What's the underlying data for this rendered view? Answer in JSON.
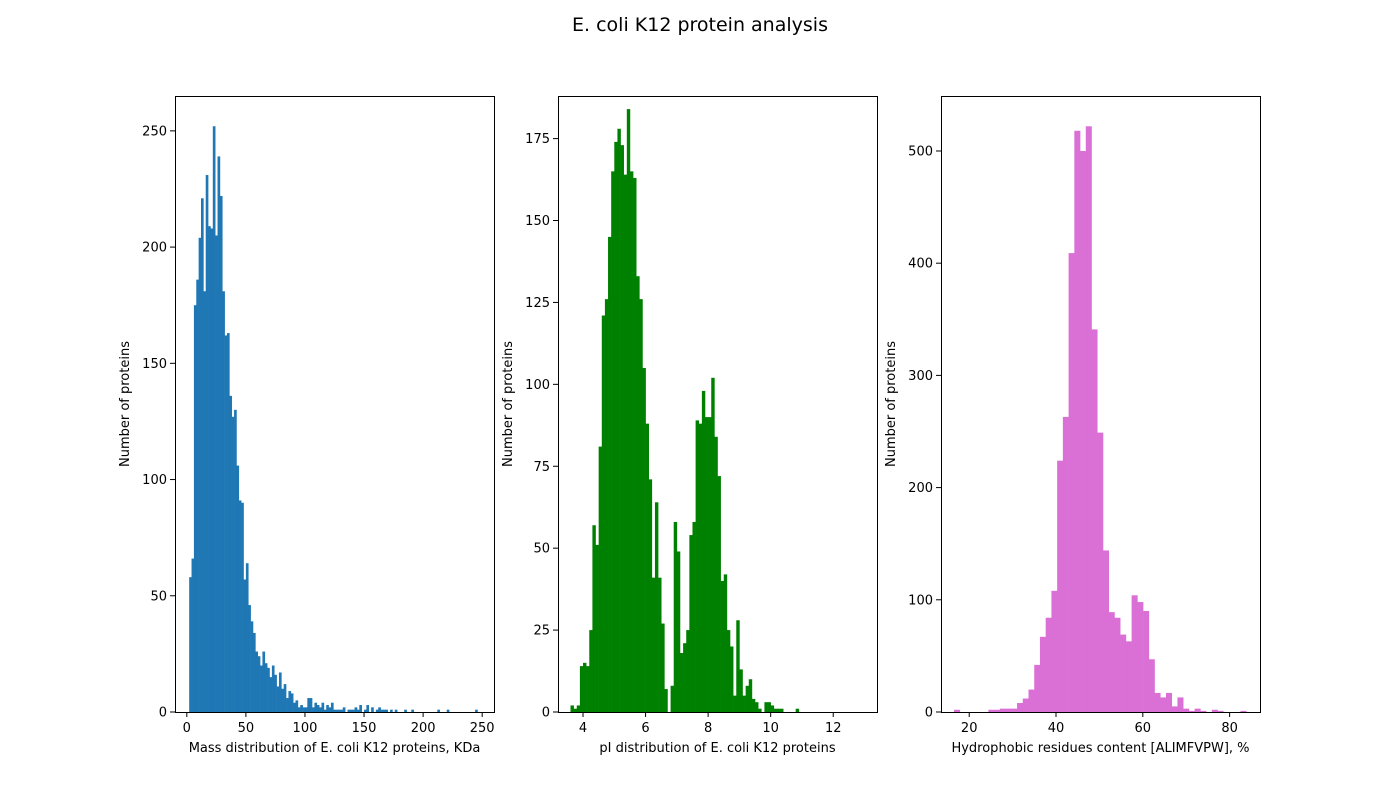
{
  "figure": {
    "title": "E. coli K12 protein analysis"
  },
  "chart_data": [
    {
      "type": "bar",
      "subtype": "histogram",
      "color": "#1f77b4",
      "xlabel": "Mass distribution of E. coli K12 proteins, KDa",
      "ylabel": "Number of proteins",
      "xlim": [
        -10,
        260
      ],
      "ylim": [
        0,
        265
      ],
      "xticks": [
        0,
        50,
        100,
        150,
        200,
        250
      ],
      "yticks": [
        0,
        50,
        100,
        150,
        200,
        250
      ],
      "bin_start": 2,
      "bin_width": 2,
      "values": [
        58,
        66,
        175,
        186,
        204,
        221,
        181,
        231,
        209,
        208,
        252,
        205,
        239,
        222,
        181,
        162,
        163,
        136,
        127,
        130,
        106,
        91,
        90,
        57,
        64,
        46,
        39,
        34,
        26,
        24,
        20,
        26,
        21,
        19,
        15,
        20,
        16,
        11,
        17,
        10,
        12,
        6,
        9,
        8,
        4,
        5,
        2,
        3,
        2,
        2,
        6,
        6,
        2,
        4,
        3,
        2,
        4,
        1,
        3,
        2,
        4,
        1,
        1,
        1,
        1,
        2,
        0,
        1,
        1,
        1,
        2,
        1,
        3,
        0,
        1,
        3,
        0,
        2,
        0,
        1,
        2,
        1,
        1,
        1,
        0,
        1,
        0,
        1,
        0,
        0,
        0,
        1,
        0,
        0,
        1,
        0,
        0,
        0,
        0,
        0,
        0,
        0,
        0,
        0,
        0,
        1,
        0,
        0,
        0,
        1,
        0,
        0,
        0,
        0,
        0,
        0,
        0,
        0,
        0,
        0,
        0,
        1
      ]
    },
    {
      "type": "bar",
      "subtype": "histogram",
      "color": "#008000",
      "xlabel": "pI distribution of E. coli K12 proteins",
      "ylabel": "Number of proteins",
      "xlim": [
        3.2,
        13.4
      ],
      "ylim": [
        0,
        188
      ],
      "xticks": [
        4,
        6,
        8,
        10,
        12
      ],
      "yticks": [
        0,
        25,
        50,
        75,
        100,
        125,
        150,
        175
      ],
      "bin_start": 3.6,
      "bin_width": 0.1,
      "values": [
        2,
        1,
        2,
        14,
        15,
        14,
        25,
        57,
        51,
        81,
        121,
        126,
        145,
        165,
        174,
        178,
        173,
        164,
        184,
        165,
        163,
        133,
        126,
        105,
        88,
        71,
        41,
        64,
        41,
        27,
        7,
        0,
        8,
        58,
        49,
        18,
        21,
        25,
        54,
        58,
        89,
        88,
        98,
        90,
        90,
        102,
        84,
        72,
        40,
        42,
        25,
        20,
        5,
        28,
        13,
        5,
        8,
        10,
        4,
        3,
        1,
        0,
        3,
        3,
        2,
        1,
        1,
        1,
        0,
        0,
        0,
        0,
        1
      ]
    },
    {
      "type": "bar",
      "subtype": "histogram",
      "color": "#da70d6",
      "xlabel": "Hydrophobic residues content [ALIMFVPW], %",
      "ylabel": "Number of proteins",
      "xlim": [
        13.5,
        87
      ],
      "ylim": [
        0,
        549
      ],
      "xticks": [
        20,
        40,
        60,
        80
      ],
      "yticks": [
        0,
        100,
        200,
        300,
        400,
        500
      ],
      "bin_start": 16.5,
      "bin_width": 1.32,
      "values": [
        2,
        0,
        0,
        0,
        0,
        0,
        2,
        2,
        3,
        3,
        3,
        8,
        12,
        20,
        42,
        67,
        84,
        108,
        224,
        263,
        409,
        518,
        500,
        522,
        341,
        249,
        144,
        89,
        84,
        69,
        63,
        104,
        98,
        90,
        47,
        17,
        13,
        17,
        5,
        13,
        3,
        1,
        3,
        1,
        0,
        2,
        1,
        0,
        0,
        0,
        1
      ]
    }
  ]
}
